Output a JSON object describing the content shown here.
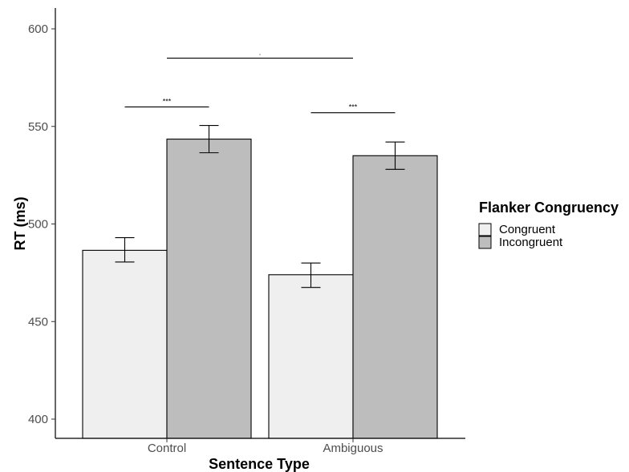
{
  "chart_data": {
    "type": "bar",
    "xlabel": "Sentence Type",
    "ylabel": "RT (ms)",
    "ylim": [
      390,
      610
    ],
    "yticks": [
      400,
      450,
      500,
      550,
      600
    ],
    "yticks_text": [
      "400",
      "450",
      "500",
      "550",
      "600"
    ],
    "categories": [
      "Control",
      "Ambiguous"
    ],
    "legend": {
      "title": "Flanker Congruency",
      "placement": "right"
    },
    "series": [
      {
        "name": "Congruent",
        "color": "#efefef",
        "values": [
          486.5,
          474
        ],
        "err_low": [
          480.5,
          467.5
        ],
        "err_high": [
          493,
          480
        ]
      },
      {
        "name": "Incongruent",
        "color": "#bdbdbd",
        "values": [
          543.5,
          535
        ],
        "err_low": [
          536.5,
          528
        ],
        "err_high": [
          550.5,
          542
        ]
      }
    ],
    "significance": [
      {
        "label": "***",
        "from": "Control.Congruent",
        "to": "Control.Incongruent",
        "y": 560
      },
      {
        "label": "***",
        "from": "Ambiguous.Congruent",
        "to": "Ambiguous.Incongruent",
        "y": 557
      },
      {
        "label": ".",
        "from": "Control",
        "to": "Ambiguous",
        "y": 585
      }
    ],
    "grid": false
  }
}
